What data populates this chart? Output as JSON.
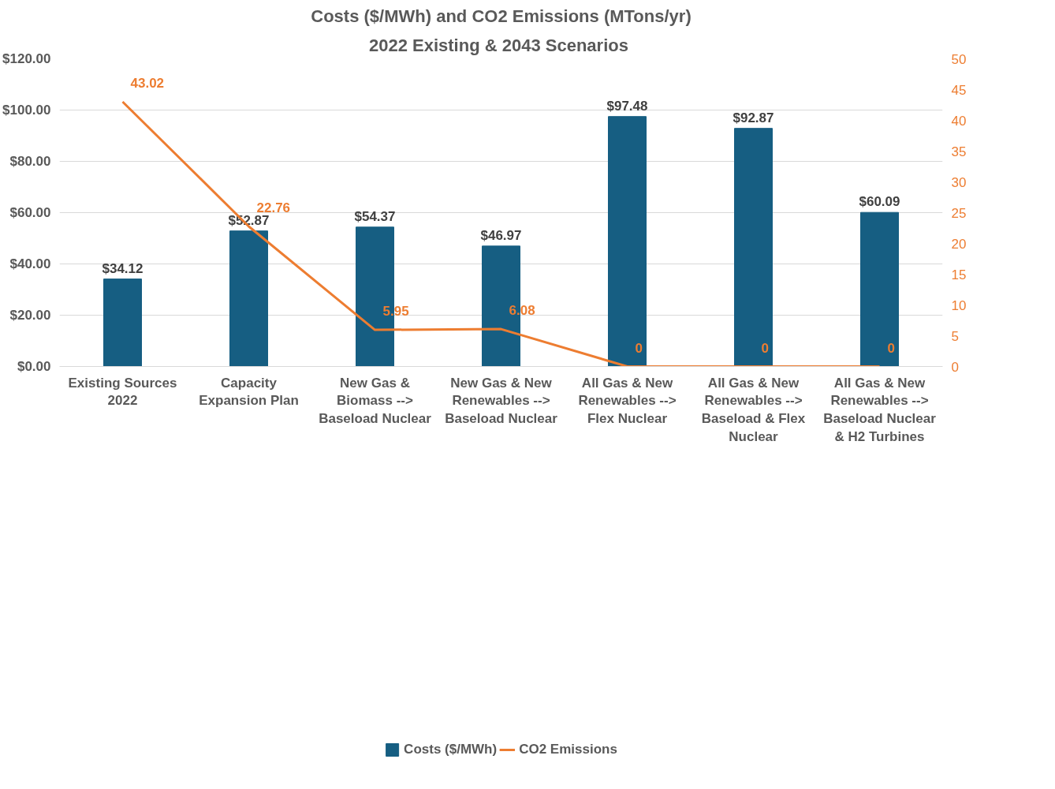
{
  "chart_data": {
    "type": "bar",
    "title": "Costs ($/MWh) and CO2 Emissions (MTons/yr)",
    "subtitle": "2022 Existing & 2043  Scenarios",
    "categories": [
      "Existing Sources 2022",
      "Capacity Expansion Plan",
      "New Gas & Biomass --> Baseload Nuclear",
      "New Gas & New Renewables --> Baseload Nuclear",
      "All Gas & New Renewables --> Flex Nuclear",
      "All Gas & New Renewables --> Baseload & Flex Nuclear",
      "All Gas & New Renewables --> Baseload Nuclear & H2 Turbines"
    ],
    "series": [
      {
        "name": "Costs ($/MWh)",
        "type": "bar",
        "color": "#165e82",
        "values": [
          34.12,
          52.87,
          54.37,
          46.97,
          97.48,
          92.87,
          60.09
        ],
        "value_labels": [
          "$34.12",
          "$52.87",
          "$54.37",
          "$46.97",
          "$97.48",
          "$92.87",
          "$60.09"
        ]
      },
      {
        "name": "CO2 Emissions",
        "type": "line",
        "axis": "y2",
        "color": "#ed7d31",
        "values": [
          43.02,
          22.76,
          5.95,
          6.08,
          0,
          0,
          0
        ],
        "data_labels": true
      }
    ],
    "ylim": [
      0,
      120
    ],
    "yticks": [
      {
        "value": 0,
        "label": "$0.00"
      },
      {
        "value": 20,
        "label": "$20.00"
      },
      {
        "value": 40,
        "label": "$40.00"
      },
      {
        "value": 60,
        "label": "$60.00"
      },
      {
        "value": 80,
        "label": "$80.00"
      },
      {
        "value": 100,
        "label": "$100.00"
      },
      {
        "value": 120,
        "label": "$120.00"
      }
    ],
    "y2lim": [
      0,
      50
    ],
    "y2ticks": [
      0,
      5,
      10,
      15,
      20,
      25,
      30,
      35,
      40,
      45,
      50
    ],
    "grid": "y",
    "legend": "bottom",
    "marker": "none",
    "line_style": "solid"
  }
}
